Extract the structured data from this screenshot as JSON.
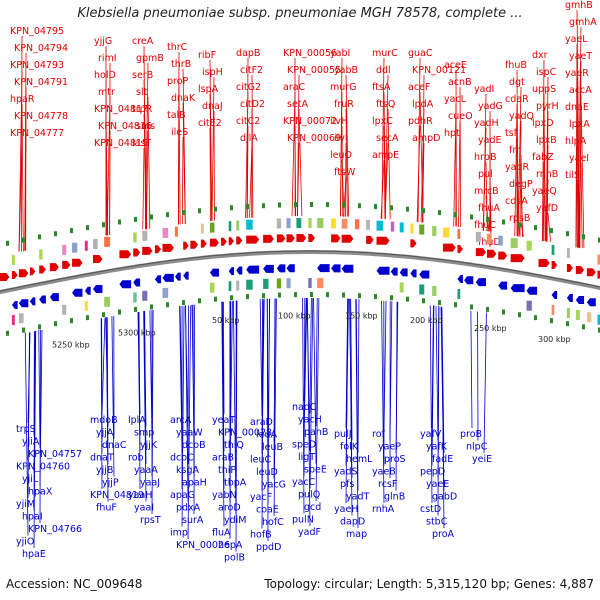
{
  "title": "Klebsiella pneumoniae subsp. pneumoniae MGH 78578, complete ...",
  "footer": {
    "accession": "Accession: NC_009648",
    "info": "Topology: circular; Length: 5,315,120 bp; Genes: 4,887"
  },
  "colors": {
    "forward_gene": "#e00000",
    "reverse_gene": "#0000cc",
    "rna_gene": "#ff88cc",
    "backbone": "#8c8c8c",
    "ticks": "#2a8a2a"
  },
  "scale_ticks": [
    {
      "label": "5250 kbp",
      "pos": 5250000
    },
    {
      "label": "5300 kbp",
      "pos": 5300000
    },
    {
      "label": "50 kbp",
      "pos": 50000
    },
    {
      "label": "100 kbp",
      "pos": 100000
    },
    {
      "label": "150 kbp",
      "pos": 150000
    },
    {
      "label": "200 kbp",
      "pos": 200000
    },
    {
      "label": "250 kbp",
      "pos": 250000
    },
    {
      "label": "300 kbp",
      "pos": 300000
    }
  ],
  "top_labels": [
    {
      "t": "KPN_04795",
      "c": "f"
    },
    {
      "t": "KPN_04794",
      "c": "f"
    },
    {
      "t": "KPN_04793",
      "c": "f"
    },
    {
      "t": "KPN_04791",
      "c": "f"
    },
    {
      "t": "hpaR",
      "c": "f"
    },
    {
      "t": "KPN_04778",
      "c": "f"
    },
    {
      "t": "KPN_04777",
      "c": "f"
    },
    {
      "t": "yjjG",
      "c": "f"
    },
    {
      "t": "rimI",
      "c": "f"
    },
    {
      "t": "holD",
      "c": "f"
    },
    {
      "t": "mtr",
      "c": "f"
    },
    {
      "t": "KPN_04817",
      "c": "f"
    },
    {
      "t": "KPN_04816",
      "c": "f"
    },
    {
      "t": "KPN_04815",
      "c": "f"
    },
    {
      "t": "creA",
      "c": "f"
    },
    {
      "t": "gpmB",
      "c": "f"
    },
    {
      "t": "serB",
      "c": "f"
    },
    {
      "t": "slt",
      "c": "f"
    },
    {
      "t": "trpR",
      "c": "f"
    },
    {
      "t": "sms",
      "c": "f"
    },
    {
      "t": "lasT",
      "c": "f"
    },
    {
      "t": "thrC",
      "c": "f"
    },
    {
      "t": "thrB",
      "c": "f"
    },
    {
      "t": "proP",
      "c": "f"
    },
    {
      "t": "dnaK",
      "c": "f"
    },
    {
      "t": "talB",
      "c": "f"
    },
    {
      "t": "ileS",
      "c": "f"
    },
    {
      "t": "ribF",
      "c": "f"
    },
    {
      "t": "ispH",
      "c": "f"
    },
    {
      "t": "lspA",
      "c": "f"
    },
    {
      "t": "dnaJ",
      "c": "f"
    },
    {
      "t": "citE2",
      "c": "f"
    },
    {
      "t": "dapB",
      "c": "f"
    },
    {
      "t": "citF2",
      "c": "f"
    },
    {
      "t": "citG2",
      "c": "f"
    },
    {
      "t": "citD2",
      "c": "f"
    },
    {
      "t": "citC2",
      "c": "f"
    },
    {
      "t": "djlA",
      "c": "f"
    },
    {
      "t": "KPN_00056",
      "c": "f"
    },
    {
      "t": "KPN_00055",
      "c": "f"
    },
    {
      "t": "araC",
      "c": "f"
    },
    {
      "t": "setA",
      "c": "f"
    },
    {
      "t": "KPN_00072",
      "c": "f"
    },
    {
      "t": "KPN_00069",
      "c": "f"
    },
    {
      "t": "yabI",
      "c": "f"
    },
    {
      "t": "yabB",
      "c": "f"
    },
    {
      "t": "murG",
      "c": "f"
    },
    {
      "t": "fruR",
      "c": "f"
    },
    {
      "t": "ilvH",
      "c": "f"
    },
    {
      "t": "ilvI",
      "c": "f"
    },
    {
      "t": "leuO",
      "c": "f"
    },
    {
      "t": "ftsW",
      "c": "f"
    },
    {
      "t": "murC",
      "c": "f"
    },
    {
      "t": "ddl",
      "c": "f"
    },
    {
      "t": "ftsA",
      "c": "f"
    },
    {
      "t": "ftsQ",
      "c": "f"
    },
    {
      "t": "lpxC",
      "c": "f"
    },
    {
      "t": "secA",
      "c": "f"
    },
    {
      "t": "ampE",
      "c": "f"
    },
    {
      "t": "guaC",
      "c": "f"
    },
    {
      "t": "KPN_00121",
      "c": "f"
    },
    {
      "t": "aceF",
      "c": "f"
    },
    {
      "t": "lpdA",
      "c": "f"
    },
    {
      "t": "pdhR",
      "c": "f"
    },
    {
      "t": "ampD",
      "c": "f"
    },
    {
      "t": "aceE",
      "c": "f"
    },
    {
      "t": "acnB",
      "c": "f"
    },
    {
      "t": "yacL",
      "c": "f"
    },
    {
      "t": "cueO",
      "c": "f"
    },
    {
      "t": "hpt",
      "c": "f"
    },
    {
      "t": "yadI",
      "c": "f"
    },
    {
      "t": "yadG",
      "c": "f"
    },
    {
      "t": "yadH",
      "c": "f"
    },
    {
      "t": "yadE",
      "c": "f"
    },
    {
      "t": "hrpB",
      "c": "f"
    },
    {
      "t": "pul",
      "c": "f"
    },
    {
      "t": "mrcB",
      "c": "f"
    },
    {
      "t": "fhuA",
      "c": "f"
    },
    {
      "t": "fhuC",
      "c": "f"
    },
    {
      "t": "fhuD",
      "c": "f"
    },
    {
      "t": "fhuB",
      "c": "f"
    },
    {
      "t": "dgt",
      "c": "f"
    },
    {
      "t": "cdaR",
      "c": "f"
    },
    {
      "t": "yadQ",
      "c": "f"
    },
    {
      "t": "tsf",
      "c": "f"
    },
    {
      "t": "frr",
      "c": "f"
    },
    {
      "t": "yadR",
      "c": "f"
    },
    {
      "t": "degP",
      "c": "f"
    },
    {
      "t": "cdsA",
      "c": "f"
    },
    {
      "t": "rpsB",
      "c": "f"
    },
    {
      "t": "dxr",
      "c": "f"
    },
    {
      "t": "ispC",
      "c": "f"
    },
    {
      "t": "uppS",
      "c": "f"
    },
    {
      "t": "pyrH",
      "c": "f"
    },
    {
      "t": "lpxD",
      "c": "f"
    },
    {
      "t": "lpxB",
      "c": "f"
    },
    {
      "t": "fabZ",
      "c": "f"
    },
    {
      "t": "rnhB",
      "c": "f"
    },
    {
      "t": "yaeQ",
      "c": "f"
    },
    {
      "t": "yafD",
      "c": "f"
    },
    {
      "t": "gmhB",
      "c": "f"
    },
    {
      "t": "gmhA",
      "c": "f"
    },
    {
      "t": "yaeL",
      "c": "f"
    },
    {
      "t": "yaeT",
      "c": "f"
    },
    {
      "t": "yaeR",
      "c": "f"
    },
    {
      "t": "accA",
      "c": "f"
    },
    {
      "t": "dnaE",
      "c": "f"
    },
    {
      "t": "lpxA",
      "c": "f"
    },
    {
      "t": "hlpA",
      "c": "f"
    },
    {
      "t": "yaeI",
      "c": "f"
    },
    {
      "t": "tilS",
      "c": "f"
    },
    {
      "t": "rrlH",
      "c": "r"
    },
    {
      "t": "rrfH",
      "c": "r"
    },
    {
      "t": "rrsH",
      "c": "r"
    },
    {
      "t": "cutF",
      "c": "f"
    },
    {
      "t": "dkgB",
      "c": "f"
    },
    {
      "t": "yafJ",
      "c": "f"
    }
  ],
  "bottom_labels": [
    {
      "t": "trpS"
    },
    {
      "t": "yjiA"
    },
    {
      "t": "KPN_04757"
    },
    {
      "t": "KPN_04760"
    },
    {
      "t": "yjiL"
    },
    {
      "t": "hpaX"
    },
    {
      "t": "yjiM"
    },
    {
      "t": "hpaI"
    },
    {
      "t": "KPN_04766"
    },
    {
      "t": "yjiO"
    },
    {
      "t": "hpaE"
    },
    {
      "t": "yjiN"
    },
    {
      "t": "hpaG"
    },
    {
      "t": "mdoB"
    },
    {
      "t": "yjjA"
    },
    {
      "t": "dnaC"
    },
    {
      "t": "dnaT"
    },
    {
      "t": "yjjB"
    },
    {
      "t": "yjjP"
    },
    {
      "t": "KPN_04819"
    },
    {
      "t": "fhuF"
    },
    {
      "t": "lplA"
    },
    {
      "t": "smp"
    },
    {
      "t": "yjjK"
    },
    {
      "t": "rob"
    },
    {
      "t": "yaaA"
    },
    {
      "t": "yaaJ"
    },
    {
      "t": "yaaH"
    },
    {
      "t": "yaaI"
    },
    {
      "t": "rpsT"
    },
    {
      "t": "arcA"
    },
    {
      "t": "yaaW"
    },
    {
      "t": "dcoB"
    },
    {
      "t": "dcoC"
    },
    {
      "t": "ksgA"
    },
    {
      "t": "apaH"
    },
    {
      "t": "apaG"
    },
    {
      "t": "pdxA"
    },
    {
      "t": "surA"
    },
    {
      "t": "imp"
    },
    {
      "t": "KPN_00026"
    },
    {
      "t": "yeaT"
    },
    {
      "t": "KPN_00028"
    },
    {
      "t": "thiQ"
    },
    {
      "t": "araB"
    },
    {
      "t": "thiP"
    },
    {
      "t": "tbpA"
    },
    {
      "t": "yabN"
    },
    {
      "t": "aroD"
    },
    {
      "t": "ydiM"
    },
    {
      "t": "fluA"
    },
    {
      "t": "hepA"
    },
    {
      "t": "polB"
    },
    {
      "t": "araD"
    },
    {
      "t": "leuA"
    },
    {
      "t": "leuB"
    },
    {
      "t": "leuC"
    },
    {
      "t": "leuD"
    },
    {
      "t": "yacG"
    },
    {
      "t": "yacF"
    },
    {
      "t": "coaE"
    },
    {
      "t": "hofC"
    },
    {
      "t": "hofB"
    },
    {
      "t": "ppdD"
    },
    {
      "t": "nadC"
    },
    {
      "t": "yacH"
    },
    {
      "t": "panB"
    },
    {
      "t": "speD"
    },
    {
      "t": "ligT"
    },
    {
      "t": "speE"
    },
    {
      "t": "yacC"
    },
    {
      "t": "pulQ"
    },
    {
      "t": "gcd"
    },
    {
      "t": "pulN"
    },
    {
      "t": "yadF"
    },
    {
      "t": "pulJ"
    },
    {
      "t": "folK"
    },
    {
      "t": "hemL"
    },
    {
      "t": "yadS"
    },
    {
      "t": "pfs"
    },
    {
      "t": "yadT"
    },
    {
      "t": "yaeH"
    },
    {
      "t": "dapD"
    },
    {
      "t": "map"
    },
    {
      "t": "rof"
    },
    {
      "t": "yaeP"
    },
    {
      "t": "proS"
    },
    {
      "t": "yaeB"
    },
    {
      "t": "rcsF"
    },
    {
      "t": "glnB"
    },
    {
      "t": "rnhA"
    },
    {
      "t": "yafV"
    },
    {
      "t": "yafK"
    },
    {
      "t": "fadE"
    },
    {
      "t": "pepD"
    },
    {
      "t": "yaeE"
    },
    {
      "t": "gabD"
    },
    {
      "t": "cstD"
    },
    {
      "t": "stbC"
    },
    {
      "t": "proA"
    },
    {
      "t": "proB"
    },
    {
      "t": "nlpC"
    },
    {
      "t": "yeiE"
    }
  ]
}
